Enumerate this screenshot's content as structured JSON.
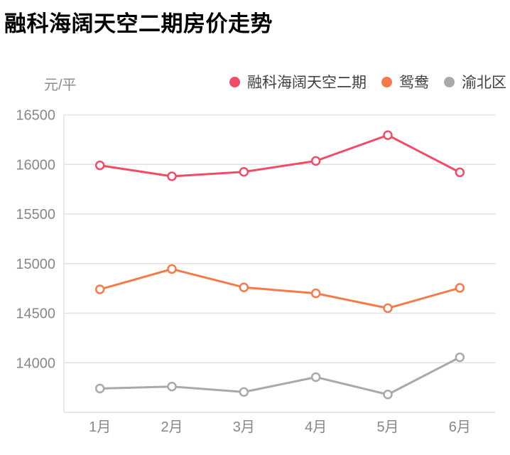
{
  "title": "融科海阔天空二期房价走势",
  "y_axis_unit": "元/平",
  "legend": {
    "items": [
      {
        "label": "融科海阔天空二期"
      },
      {
        "label": "鸳鸯"
      },
      {
        "label": "渝北区"
      }
    ]
  },
  "chart_data": {
    "type": "line",
    "title": "融科海阔天空二期房价走势",
    "xlabel": "",
    "ylabel": "元/平",
    "categories": [
      "1月",
      "2月",
      "3月",
      "4月",
      "5月",
      "6月"
    ],
    "series": [
      {
        "name": "融科海阔天空二期",
        "color": "#F14C66",
        "values": [
          15990,
          15880,
          15925,
          16035,
          16295,
          15920
        ]
      },
      {
        "name": "鸳鸯",
        "color": "#F57A49",
        "values": [
          14740,
          14945,
          14760,
          14700,
          14550,
          14755
        ]
      },
      {
        "name": "渝北区",
        "color": "#A9A9A9",
        "values": [
          13740,
          13760,
          13705,
          13855,
          13680,
          14055
        ]
      }
    ],
    "ylim": [
      13500,
      16500
    ],
    "yticks": [
      14000,
      14500,
      15000,
      15500,
      16000,
      16500
    ],
    "grid": true,
    "legend_position": "top",
    "grid_color": "#e2e2e2",
    "marker": {
      "shape": "circle",
      "fill": "#ffffff"
    }
  }
}
